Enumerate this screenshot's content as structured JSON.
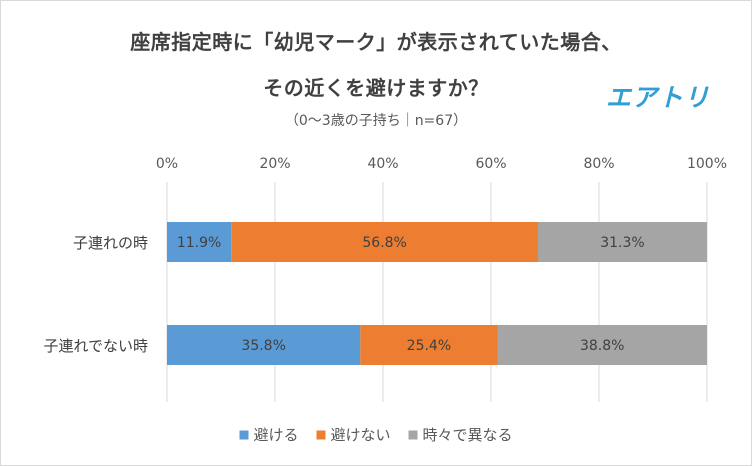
{
  "chart_data": {
    "type": "bar",
    "orientation": "horizontal",
    "stacked": true,
    "title_line1": "座席指定時に「幼児マーク」が表示されていた場合、",
    "title_line2": "その近くを避けますか？",
    "subtitle": "（0～3歳の子持ち｜n=67）",
    "brand": "エアトリ",
    "categories": [
      "子連れの時",
      "子連れでない時"
    ],
    "series": [
      {
        "name": "避ける",
        "color": "#5b9bd5",
        "values": [
          11.9,
          35.8
        ],
        "labels": [
          "11.9%",
          "35.8%"
        ]
      },
      {
        "name": "避けない",
        "color": "#ed7d31",
        "values": [
          56.8,
          25.4
        ],
        "labels": [
          "56.8%",
          "25.4%"
        ]
      },
      {
        "name": "時々で異なる",
        "color": "#a5a5a5",
        "values": [
          31.3,
          38.8
        ],
        "labels": [
          "31.3%",
          "38.8%"
        ]
      }
    ],
    "xlim": [
      0,
      100
    ],
    "xticks": [
      "0%",
      "20%",
      "40%",
      "60%",
      "80%",
      "100%"
    ],
    "grid": true,
    "legend_position": "bottom"
  }
}
